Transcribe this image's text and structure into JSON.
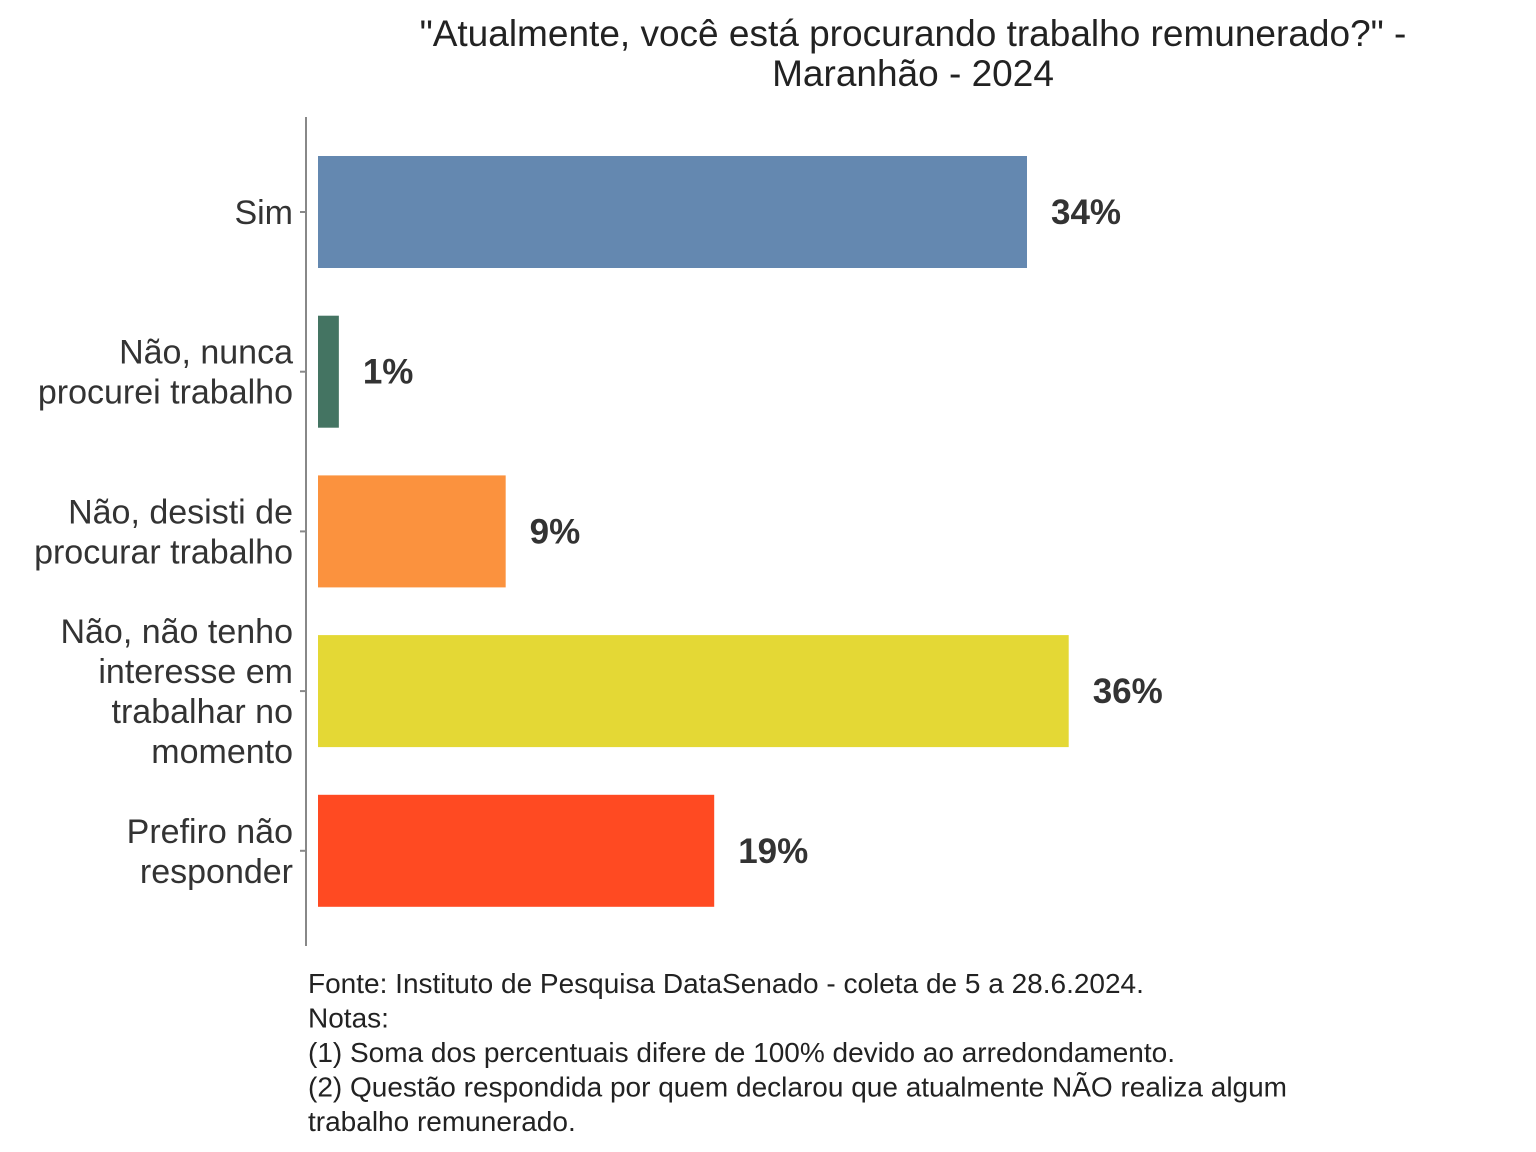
{
  "chart_data": {
    "type": "bar",
    "orientation": "horizontal",
    "title": [
      "\"Atualmente, você está procurando trabalho remunerado?\" -",
      "Maranhão - 2024"
    ],
    "categories": [
      [
        "Sim"
      ],
      [
        "Não, nunca",
        "procurei trabalho"
      ],
      [
        "Não, desisti de",
        "procurar trabalho"
      ],
      [
        "Não, não tenho",
        "interesse em",
        "trabalhar no",
        "momento"
      ],
      [
        "Prefiro não",
        "responder"
      ]
    ],
    "values": [
      34,
      1,
      9,
      36,
      19
    ],
    "data_labels": [
      "34%",
      "1%",
      "9%",
      "36%",
      "19%"
    ],
    "colors": [
      "#6488b0",
      "#447462",
      "#fb923e",
      "#e4d835",
      "#ff4a22"
    ],
    "xlim": [
      0,
      56
    ],
    "grid": false,
    "footnote": [
      "Fonte: Instituto de Pesquisa DataSenado - coleta de 5 a 28.6.2024.",
      "Notas:",
      "(1) Soma dos percentuais difere de 100% devido ao arredondamento.",
      "(2) Questão respondida por quem declarou que atualmente NÃO realiza algum",
      "trabalho remunerado."
    ]
  }
}
